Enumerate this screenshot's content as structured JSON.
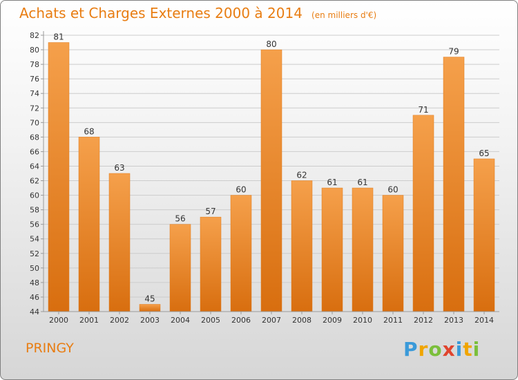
{
  "header": {
    "title": "Achats et Charges Externes 2000 à 2014",
    "unit": "(en milliers d'€)"
  },
  "footer": {
    "commune": "PRINGY",
    "logo_text": "Proxiti",
    "logo_letters": [
      {
        "ch": "P",
        "color": "#3a9ad9"
      },
      {
        "ch": "r",
        "color": "#f0a500"
      },
      {
        "ch": "o",
        "color": "#7bbf3b"
      },
      {
        "ch": "x",
        "color": "#e0442d"
      },
      {
        "ch": "i",
        "color": "#3a9ad9"
      },
      {
        "ch": "t",
        "color": "#f0a500"
      },
      {
        "ch": "i",
        "color": "#7bbf3b"
      }
    ]
  },
  "colors": {
    "accent": "#e87d12",
    "bar_top": "#f5a04b",
    "bar_bottom": "#d86e0f",
    "grid": "#cccccc"
  },
  "chart_data": {
    "type": "bar",
    "categories": [
      "2000",
      "2001",
      "2002",
      "2003",
      "2004",
      "2005",
      "2006",
      "2007",
      "2008",
      "2009",
      "2010",
      "2011",
      "2012",
      "2013",
      "2014"
    ],
    "values": [
      81,
      68,
      63,
      45,
      56,
      57,
      60,
      80,
      62,
      61,
      61,
      60,
      71,
      79,
      65
    ],
    "title": "Achats et Charges Externes 2000 à 2014",
    "xlabel": "",
    "ylabel": "",
    "ylim": [
      44,
      82
    ],
    "yticks": [
      44,
      46,
      48,
      50,
      52,
      54,
      56,
      58,
      60,
      62,
      64,
      66,
      68,
      70,
      72,
      74,
      76,
      78,
      80,
      82
    ],
    "grid": true,
    "legend": "none"
  }
}
